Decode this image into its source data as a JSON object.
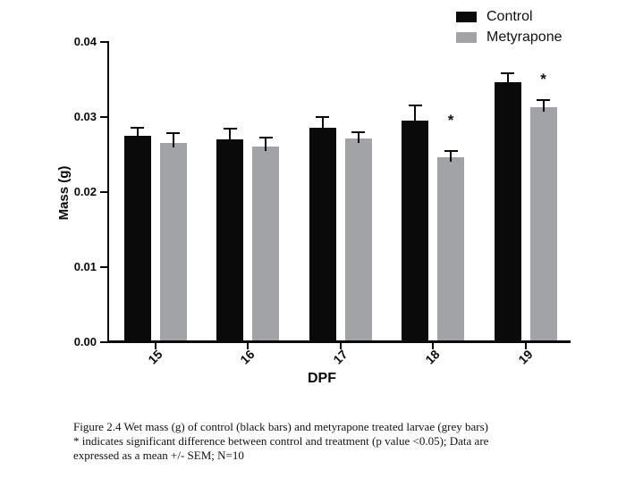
{
  "chart_data": {
    "type": "bar",
    "title": "",
    "xlabel": "DPF",
    "ylabel": "Mass (g)",
    "categories": [
      "15",
      "16",
      "17",
      "18",
      "19"
    ],
    "series": [
      {
        "name": "Control",
        "color": "#0a0a0a",
        "values": [
          0.0275,
          0.027,
          0.0286,
          0.0295,
          0.0347
        ],
        "errors": [
          0.0011,
          0.0014,
          0.0014,
          0.002,
          0.0011
        ]
      },
      {
        "name": "Metyrapone",
        "color": "#a2a3a7",
        "values": [
          0.0265,
          0.0261,
          0.0272,
          0.0247,
          0.0313
        ],
        "errors": [
          0.0013,
          0.0012,
          0.0008,
          0.0008,
          0.001
        ]
      }
    ],
    "error_type": "SEM, upper only",
    "ylim": [
      0,
      0.04
    ],
    "yticks": [
      "0.00",
      "0.01",
      "0.02",
      "0.03",
      "0.04"
    ],
    "grid": false,
    "legend_position": "top-right",
    "significance": [
      {
        "category": "18",
        "series": "Metyrapone",
        "symbol": "*",
        "y": 0.0296
      },
      {
        "category": "19",
        "series": "Metyrapone",
        "symbol": "*",
        "y": 0.0351
      }
    ]
  },
  "figure": {
    "caption_lines": [
      "Figure 2.4 Wet mass (g) of control (black bars) and metyrapone treated larvae (grey bars)",
      "* indicates significant difference between control and treatment (p value <0.05); Data are",
      "expressed as a mean +/- SEM; N=10"
    ]
  }
}
